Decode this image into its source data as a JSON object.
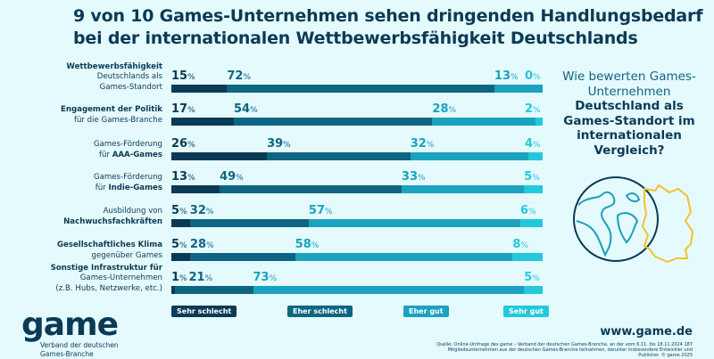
{
  "title": [
    "9 von 10 Games-Unternehmen sehen dringenden Handlungsbedarf",
    "bei der internationalen Wettbewerbsfähigkeit Deutschlands"
  ],
  "question": {
    "normal": "Wie bewerten Games-Unternehmen",
    "bold": "Deutschland als Games-Standort im internationalen Vergleich?"
  },
  "colors": {
    "background": "#e4fafd",
    "sehr_schlecht": "#0b3a55",
    "eher_schlecht": "#0e6582",
    "eher_gut": "#1ba2bf",
    "sehr_gut": "#22c9dc",
    "globe_land": "#1a9fb8",
    "germany_outline": "#f2c12e"
  },
  "icons": [
    "globe-icon",
    "germany-map-icon"
  ],
  "chart_data": {
    "type": "bar",
    "orientation": "horizontal",
    "stacked": true,
    "unit": "%",
    "categories": [
      [
        "Wettbewerbsfähigkeit",
        "Deutschlands als",
        "Games-Standort"
      ],
      [
        "Engagement der Politik",
        "für die Games-Branche"
      ],
      [
        "Games-Förderung",
        "für AAA-Games"
      ],
      [
        "Games-Förderung",
        "für Indie-Games"
      ],
      [
        "Ausbildung von",
        "Nachwuchsfachkräften"
      ],
      [
        "Gesellschaftliches Klima",
        "gegenüber Games"
      ],
      [
        "Sonstige Infrastruktur für",
        "Games-Unternehmen",
        "(z.B. Hubs, Netzwerke, etc.)"
      ]
    ],
    "bold_lines": [
      [
        0
      ],
      [
        0
      ],
      [],
      [],
      [
        1
      ],
      [
        0
      ],
      [
        0
      ]
    ],
    "bold_parts": [
      "",
      "",
      "AAA-Games",
      "Indie-Games",
      "",
      "",
      ""
    ],
    "series": [
      {
        "name": "Sehr schlecht",
        "values": [
          15,
          17,
          26,
          13,
          5,
          5,
          1
        ]
      },
      {
        "name": "Eher schlecht",
        "values": [
          72,
          54,
          39,
          49,
          32,
          28,
          21
        ]
      },
      {
        "name": "Eher gut",
        "values": [
          13,
          28,
          32,
          33,
          57,
          58,
          73
        ]
      },
      {
        "name": "Sehr gut",
        "values": [
          0,
          2,
          4,
          5,
          6,
          8,
          5
        ]
      }
    ],
    "legend_position": "bottom"
  },
  "footer": {
    "logo": "game",
    "logo_sub": [
      "Verband der deutschen",
      "Games-Branche"
    ],
    "url": "www.game.de",
    "source": "Quelle: Online-Umfrage des game – Verband der deutschen Games-Branche, an der vom 6.11. bis 18.11.2024 187 Mitgliedsunternehmen aus der deutschen Games-Branche teilnahmen, darunter insbesondere Entwickler und Publisher. © game 2025"
  }
}
